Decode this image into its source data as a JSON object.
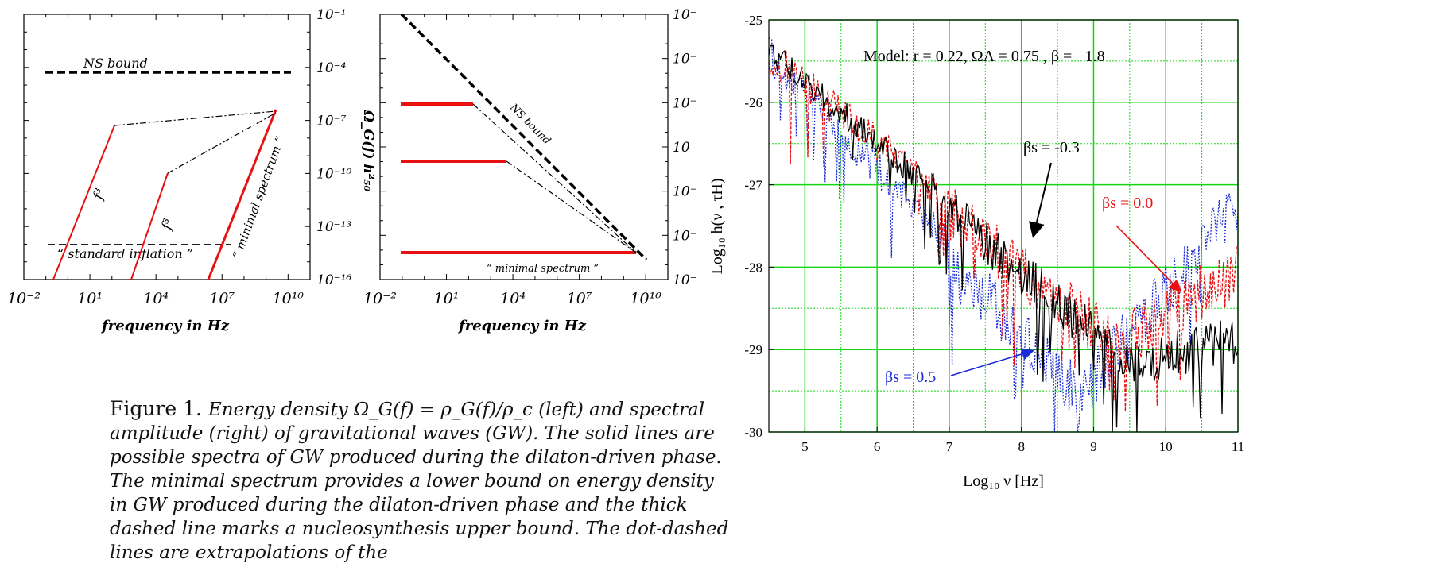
{
  "colors": {
    "red": "#e81010",
    "black": "#000000",
    "blue": "#1a2bd6",
    "grid_green": "#14d614",
    "purple": "#6a1a8c"
  },
  "left_panel": {
    "xlabel": "frequency in Hz",
    "x_ticks": [
      "10⁻²",
      "10¹",
      "10⁴",
      "10⁷",
      "10¹⁰"
    ],
    "y_ticks_right": [
      "10⁻¹",
      "10⁻⁴",
      "10⁻⁷",
      "10⁻¹⁰",
      "10⁻¹³",
      "10⁻¹⁶"
    ],
    "ylabel_right": "Ω_G(f) h²₅₀",
    "ns_label": "NS bound",
    "inflation_label": "“ standard inflation ”",
    "minimal_label": "“ minimal spectrum ”",
    "f3_label": "f³"
  },
  "middle_panel": {
    "xlabel": "frequency in Hz",
    "x_ticks": [
      "10⁻²",
      "10¹",
      "10⁴",
      "10⁷",
      "10¹⁰"
    ],
    "y_ticks_right": [
      "10⁻",
      "10⁻",
      "10⁻",
      "10⁻",
      "10⁻",
      "10⁻",
      "10⁻"
    ],
    "ns_label": "NS bound",
    "minimal_label": "“ minimal spectrum ”"
  },
  "caption": {
    "label": "Figure 1.",
    "text": "Energy density Ω_G(f) = ρ_G(f)/ρ_c (left) and spectral amplitude (right) of gravitational waves (GW). The solid lines are possible spectra of GW produced during the dilaton-driven phase. The minimal spectrum provides a lower bound on energy density in GW produced during the dilaton-driven phase and the thick dashed line marks a nucleosynthesis upper bound. The dot-dashed lines are extrapolations of the"
  },
  "chart_data": [
    {
      "type": "line",
      "panel": "left",
      "xlabel": "frequency in Hz",
      "ylabel": "Ω_G(f) h²₅₀",
      "x_scale": "log",
      "y_scale": "log",
      "xlim": [
        0.01,
        100000000000.0
      ],
      "ylim": [
        1e-16,
        0.1
      ],
      "series": [
        {
          "style": "thick-dashed",
          "label": "NS bound",
          "x": [
            0.1,
            100000000000.0
          ],
          "y": [
            5e-05,
            5e-05
          ]
        },
        {
          "style": "dashed",
          "label": "“ standard inflation ”",
          "x": [
            0.1,
            500000000.0
          ],
          "y": [
            3e-14,
            3e-14
          ]
        },
        {
          "style": "solid-red",
          "label": "f³",
          "x": [
            0.2,
            30
          ],
          "y": [
            1e-16,
            2e-08
          ]
        },
        {
          "style": "solid-red",
          "label": "f³",
          "x": [
            2,
            10000.0
          ],
          "y": [
            1e-16,
            1e-10
          ]
        },
        {
          "style": "solid-red",
          "label": "“ minimal spectrum ”",
          "x": [
            10000000.0,
            50000000000.0
          ],
          "y": [
            1e-16,
            2e-07
          ]
        },
        {
          "style": "dot-dashed",
          "x": [
            30,
            50000000000.0
          ],
          "y": [
            2e-08,
            2e-07
          ]
        },
        {
          "style": "dot-dashed",
          "x": [
            10000.0,
            50000000000.0
          ],
          "y": [
            1e-10,
            2e-07
          ]
        }
      ]
    },
    {
      "type": "line",
      "panel": "middle",
      "xlabel": "frequency in Hz",
      "x_scale": "log",
      "xlim": [
        0.01,
        100000000000.0
      ],
      "series": [
        {
          "style": "thick-dashed",
          "label": "NS bound"
        },
        {
          "style": "solid-red"
        },
        {
          "style": "solid-red"
        },
        {
          "style": "solid-red",
          "label": "“ minimal spectrum ”"
        },
        {
          "style": "dot-dashed"
        },
        {
          "style": "dot-dashed"
        }
      ]
    },
    {
      "type": "line",
      "panel": "right",
      "title": "Model:  r = 0.22,   ΩΛ = 0.75 ,   β = −1.8",
      "xlabel": "Log₁₀ ν [Hz]",
      "ylabel": "Log₁₀ h(ν , τH)",
      "xlim": [
        4.5,
        11
      ],
      "ylim": [
        -30,
        -25
      ],
      "x_ticks": [
        "5",
        "6",
        "7",
        "8",
        "9",
        "10",
        "11"
      ],
      "y_ticks": [
        "-25",
        "-26",
        "-27",
        "-28",
        "-29",
        "-30"
      ],
      "grid": true,
      "annotations": [
        "βs = -0.3",
        "βs = 0.0",
        "βs = 0.5"
      ],
      "series": [
        {
          "name": "βs = -0.3",
          "color": "#000000",
          "trend_x": [
            4.5,
            9.5,
            11
          ],
          "trend_y": [
            -25.2,
            -28.9,
            -28.6
          ]
        },
        {
          "name": "βs = 0.0",
          "color": "#e81010",
          "trend_x": [
            4.5,
            9.3,
            11
          ],
          "trend_y": [
            -25.2,
            -28.6,
            -27.7
          ]
        },
        {
          "name": "βs = 0.5",
          "color": "#1a2bd6",
          "trend_x": [
            4.5,
            8.8,
            11
          ],
          "trend_y": [
            -25.2,
            -29.2,
            -26.9
          ]
        }
      ]
    }
  ]
}
